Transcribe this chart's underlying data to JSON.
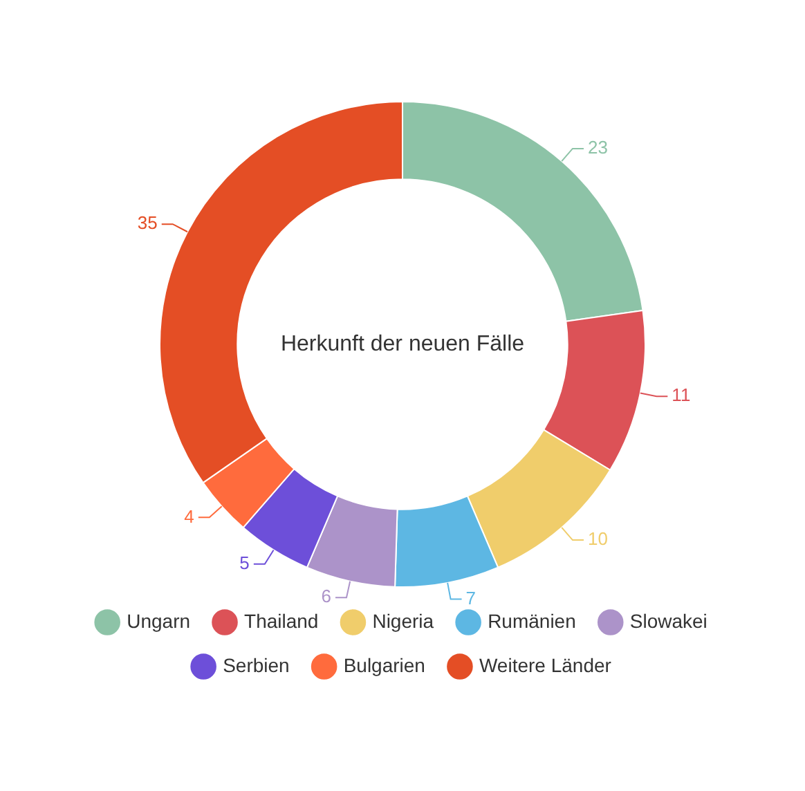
{
  "chart_data": {
    "type": "donut",
    "title": "Herkunft der neuen Fälle",
    "categories": [
      "Ungarn",
      "Thailand",
      "Nigeria",
      "Rumänien",
      "Slowakei",
      "Serbien",
      "Bulgarien",
      "Weitere Länder"
    ],
    "values": [
      23,
      11,
      10,
      7,
      6,
      5,
      4,
      35
    ],
    "colors": [
      "#8dc3a7",
      "#dc5257",
      "#f0cd6b",
      "#5db7e3",
      "#ac93c9",
      "#6d4fd9",
      "#ff6b3d",
      "#e44e25"
    ],
    "data_labels": true,
    "legend": "bottom"
  }
}
